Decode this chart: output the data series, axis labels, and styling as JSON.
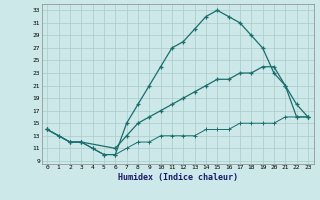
{
  "xlabel": "Humidex (Indice chaleur)",
  "bg_color": "#cce8e8",
  "grid_color": "#aacccc",
  "line_color": "#1a6e6e",
  "xlim": [
    -0.5,
    23.5
  ],
  "ylim": [
    8.5,
    34
  ],
  "yticks": [
    9,
    11,
    13,
    15,
    17,
    19,
    21,
    23,
    25,
    27,
    29,
    31,
    33
  ],
  "xticks": [
    0,
    1,
    2,
    3,
    4,
    5,
    6,
    7,
    8,
    9,
    10,
    11,
    12,
    13,
    14,
    15,
    16,
    17,
    18,
    19,
    20,
    21,
    22,
    23
  ],
  "line1_x": [
    0,
    1,
    2,
    3,
    4,
    5,
    6,
    7,
    8,
    9,
    10,
    11,
    12,
    13,
    14,
    15,
    16,
    17,
    18,
    19,
    20,
    21,
    22,
    23
  ],
  "line1_y": [
    14,
    13,
    12,
    12,
    11,
    10,
    10,
    15,
    18,
    21,
    24,
    27,
    28,
    30,
    32,
    33,
    32,
    31,
    29,
    27,
    23,
    21,
    16,
    16
  ],
  "line2_x": [
    0,
    2,
    3,
    6,
    7,
    8,
    9,
    10,
    11,
    12,
    13,
    14,
    15,
    16,
    17,
    18,
    19,
    20,
    21,
    22,
    23
  ],
  "line2_y": [
    14,
    12,
    12,
    11,
    13,
    15,
    16,
    17,
    18,
    19,
    20,
    21,
    22,
    22,
    23,
    23,
    24,
    24,
    21,
    18,
    16
  ],
  "line3_x": [
    0,
    1,
    2,
    3,
    4,
    5,
    6,
    7,
    8,
    9,
    10,
    11,
    12,
    13,
    14,
    15,
    16,
    17,
    18,
    19,
    20,
    21,
    22,
    23
  ],
  "line3_y": [
    14,
    13,
    12,
    12,
    11,
    10,
    10,
    11,
    12,
    12,
    13,
    13,
    13,
    13,
    14,
    14,
    14,
    15,
    15,
    15,
    15,
    16,
    16,
    16
  ]
}
